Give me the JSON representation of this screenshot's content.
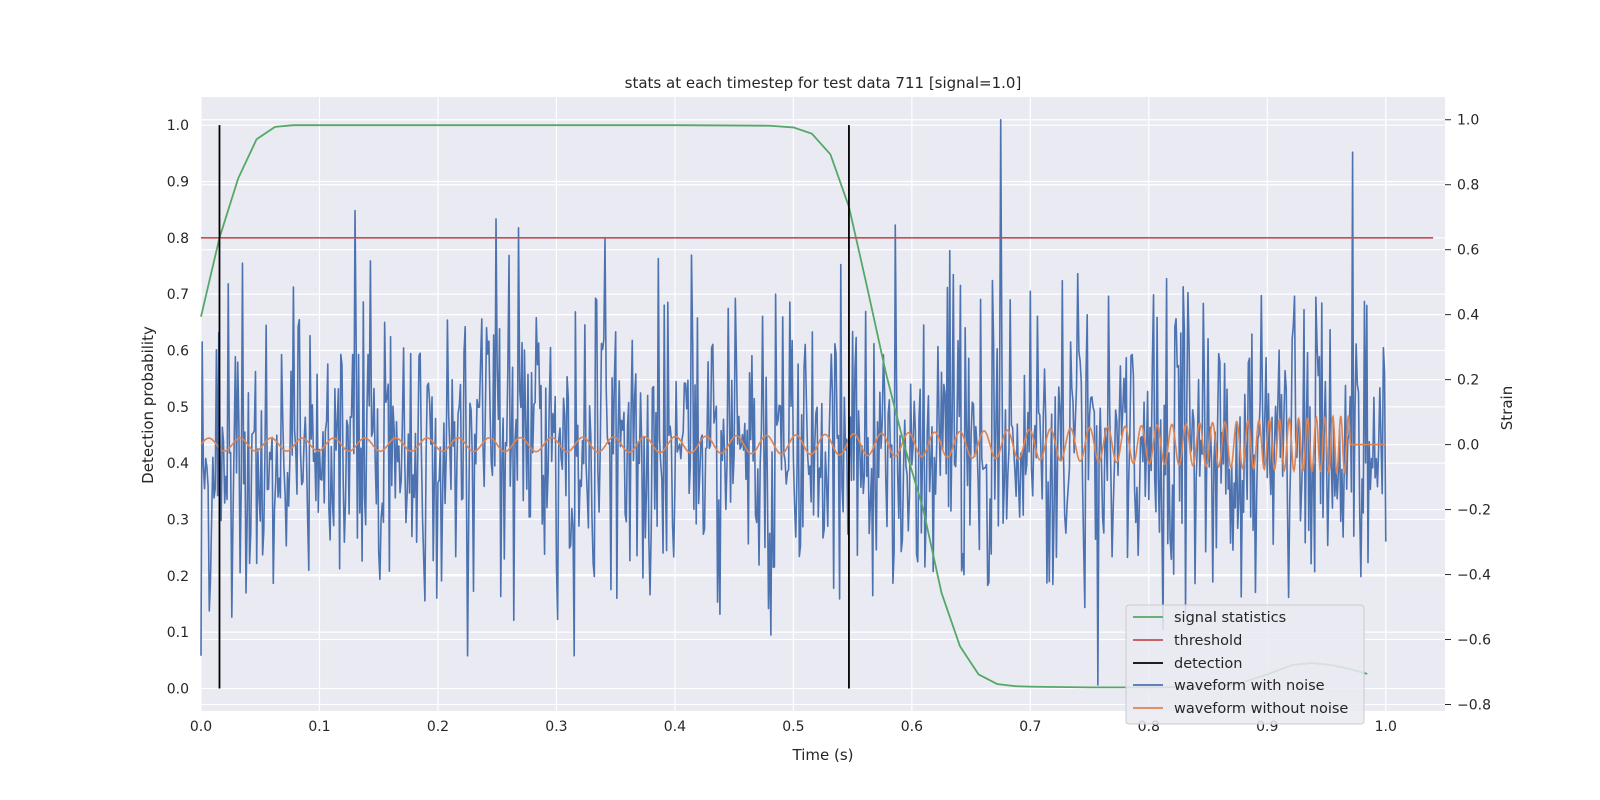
{
  "chart_data": {
    "type": "line",
    "title": "stats at each timestep for test data 711 [signal=1.0]",
    "xlabel": "Time (s)",
    "ylabel": "Detection probability",
    "ylabel_right": "Strain",
    "xlim": [
      0.0,
      1.05
    ],
    "ylim": [
      -0.04,
      1.05
    ],
    "ylim_right": [
      -0.82,
      1.07
    ],
    "x_ticks": [
      "0.0",
      "0.1",
      "0.2",
      "0.3",
      "0.4",
      "0.5",
      "0.6",
      "0.7",
      "0.8",
      "0.9",
      "1.0"
    ],
    "y_ticks": [
      "0.0",
      "0.1",
      "0.2",
      "0.3",
      "0.4",
      "0.5",
      "0.6",
      "0.7",
      "0.8",
      "0.9",
      "1.0"
    ],
    "y_ticks_right": [
      "−0.8",
      "−0.6",
      "−0.4",
      "−0.2",
      "0.0",
      "0.2",
      "0.4",
      "0.6",
      "0.8",
      "1.0"
    ],
    "grid": true,
    "background": "#eaeaf2",
    "legend_position": "lower right",
    "series": [
      {
        "name": "signal statistics",
        "axis": "left",
        "color": "#55a868",
        "x": [
          0.0,
          0.0156,
          0.0313,
          0.0469,
          0.0625,
          0.0781,
          0.1,
          0.2,
          0.3,
          0.4,
          0.48,
          0.5,
          0.5156,
          0.5313,
          0.5469,
          0.5625,
          0.5781,
          0.5938,
          0.6094,
          0.625,
          0.6406,
          0.6563,
          0.6719,
          0.6875,
          0.7031,
          0.75,
          0.8,
          0.85,
          0.875,
          0.9,
          0.9219,
          0.9375,
          0.9531,
          0.9688,
          0.9844
        ],
        "y": [
          0.66,
          0.8,
          0.905,
          0.975,
          0.997,
          1.0,
          1.0,
          1.0,
          1.0,
          1.0,
          0.999,
          0.996,
          0.985,
          0.948,
          0.855,
          0.71,
          0.56,
          0.43,
          0.32,
          0.17,
          0.075,
          0.025,
          0.008,
          0.004,
          0.003,
          0.002,
          0.002,
          0.003,
          0.008,
          0.025,
          0.042,
          0.045,
          0.042,
          0.035,
          0.026
        ]
      },
      {
        "name": "threshold",
        "axis": "left",
        "color": "#c44e52",
        "x": [
          0.0,
          1.04
        ],
        "y": [
          0.8,
          0.8
        ]
      },
      {
        "name": "detection",
        "axis": "left",
        "color": "#000000",
        "segments": [
          {
            "x": 0.0156,
            "y0": 0.0,
            "y1": 1.0
          },
          {
            "x": 0.5469,
            "y0": 0.0,
            "y1": 1.0
          }
        ]
      },
      {
        "name": "waveform with noise",
        "axis": "right",
        "color": "#4c72b0",
        "x": [
          0.0,
          1.0
        ],
        "y_range": [
          -0.74,
          1.0
        ],
        "samples": 1000,
        "note_values": "noisy strain signal, std approx 0.23, spikes to 1.0 near t=0.675 and down to -0.74 near t=0.757"
      },
      {
        "name": "waveform without noise",
        "axis": "right",
        "color": "#dd8452",
        "x": [
          0.0,
          1.0
        ],
        "amplitude_start": 0.02,
        "amplitude_end": 0.09,
        "merger_time": 0.97
      }
    ],
    "legend": [
      "signal statistics",
      "threshold",
      "detection",
      "waveform with noise",
      "waveform without noise"
    ]
  }
}
